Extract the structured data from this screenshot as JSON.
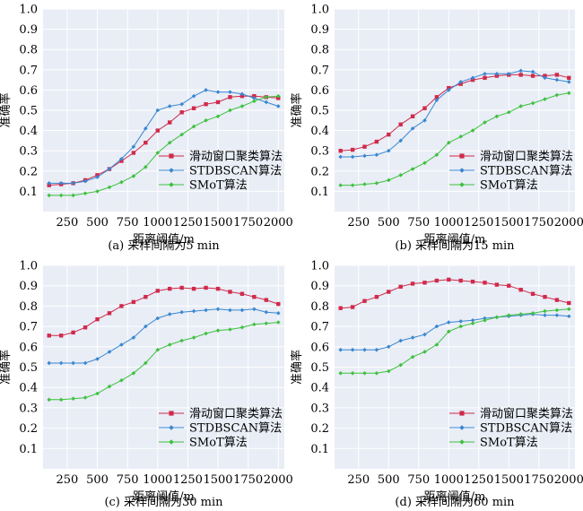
{
  "chart_data": [
    {
      "type": "line",
      "caption": "(a) 采样间隔为5 min",
      "xlabel": "距离阈值/m",
      "ylabel": "准确率",
      "xlim": [
        50,
        2050
      ],
      "ylim": [
        0,
        1.0
      ],
      "xticks": [
        250,
        500,
        750,
        1000,
        1250,
        1500,
        1750,
        2000
      ],
      "yticks": [
        0.1,
        0.2,
        0.3,
        0.4,
        0.5,
        0.6,
        0.7,
        0.8,
        0.9,
        1.0
      ],
      "grid": true,
      "legend_position": "bottom-right",
      "x": [
        100,
        200,
        300,
        400,
        500,
        600,
        700,
        800,
        900,
        1000,
        1100,
        1200,
        1300,
        1400,
        1500,
        1600,
        1700,
        1800,
        1900,
        2000
      ],
      "series": [
        {
          "name": "滑动窗口聚类算法",
          "color": "#d02a4a",
          "marker": "square",
          "values": [
            0.13,
            0.135,
            0.14,
            0.155,
            0.18,
            0.21,
            0.25,
            0.29,
            0.34,
            0.4,
            0.44,
            0.49,
            0.51,
            0.53,
            0.54,
            0.565,
            0.57,
            0.57,
            0.565,
            0.56
          ]
        },
        {
          "name": "STDBSCAN算法",
          "color": "#3a87d0",
          "marker": "diamond",
          "values": [
            0.14,
            0.14,
            0.14,
            0.15,
            0.17,
            0.21,
            0.26,
            0.32,
            0.41,
            0.5,
            0.52,
            0.53,
            0.57,
            0.6,
            0.59,
            0.59,
            0.58,
            0.56,
            0.54,
            0.52
          ]
        },
        {
          "name": "SMoT算法",
          "color": "#3fc13f",
          "marker": "diamond",
          "values": [
            0.08,
            0.08,
            0.08,
            0.09,
            0.1,
            0.12,
            0.145,
            0.175,
            0.22,
            0.29,
            0.34,
            0.38,
            0.42,
            0.45,
            0.47,
            0.5,
            0.52,
            0.545,
            0.565,
            0.57
          ]
        }
      ]
    },
    {
      "type": "line",
      "caption": "(b) 采样间隔为15 min",
      "xlabel": "距离阈值/m",
      "ylabel": "准确率",
      "xlim": [
        50,
        2050
      ],
      "ylim": [
        0,
        1.0
      ],
      "xticks": [
        250,
        500,
        750,
        1000,
        1250,
        1500,
        1750,
        2000
      ],
      "yticks": [
        0.1,
        0.2,
        0.3,
        0.4,
        0.5,
        0.6,
        0.7,
        0.8,
        0.9,
        1.0
      ],
      "grid": true,
      "legend_position": "bottom-right",
      "x": [
        100,
        200,
        300,
        400,
        500,
        600,
        700,
        800,
        900,
        1000,
        1100,
        1200,
        1300,
        1400,
        1500,
        1600,
        1700,
        1800,
        1900,
        2000
      ],
      "series": [
        {
          "name": "滑动窗口聚类算法",
          "color": "#d02a4a",
          "marker": "square",
          "values": [
            0.3,
            0.305,
            0.32,
            0.345,
            0.38,
            0.43,
            0.47,
            0.51,
            0.565,
            0.61,
            0.63,
            0.65,
            0.66,
            0.67,
            0.675,
            0.675,
            0.67,
            0.67,
            0.675,
            0.66
          ]
        },
        {
          "name": "STDBSCAN算法",
          "color": "#3a87d0",
          "marker": "diamond",
          "values": [
            0.27,
            0.27,
            0.275,
            0.28,
            0.3,
            0.35,
            0.41,
            0.45,
            0.55,
            0.6,
            0.64,
            0.66,
            0.68,
            0.68,
            0.68,
            0.695,
            0.69,
            0.66,
            0.65,
            0.64
          ]
        },
        {
          "name": "SMoT算法",
          "color": "#3fc13f",
          "marker": "diamond",
          "values": [
            0.13,
            0.13,
            0.135,
            0.14,
            0.155,
            0.18,
            0.21,
            0.24,
            0.28,
            0.34,
            0.37,
            0.4,
            0.44,
            0.47,
            0.49,
            0.52,
            0.535,
            0.555,
            0.575,
            0.585
          ]
        }
      ]
    },
    {
      "type": "line",
      "caption": "(c) 采样间隔为30 min",
      "xlabel": "距离阈值/m",
      "ylabel": "准确率",
      "xlim": [
        50,
        2050
      ],
      "ylim": [
        0,
        1.0
      ],
      "xticks": [
        250,
        500,
        750,
        1000,
        1250,
        1500,
        1750,
        2000
      ],
      "yticks": [
        0.1,
        0.2,
        0.3,
        0.4,
        0.5,
        0.6,
        0.7,
        0.8,
        0.9,
        1.0
      ],
      "grid": true,
      "legend_position": "bottom-right",
      "x": [
        100,
        200,
        300,
        400,
        500,
        600,
        700,
        800,
        900,
        1000,
        1100,
        1200,
        1300,
        1400,
        1500,
        1600,
        1700,
        1800,
        1900,
        2000
      ],
      "series": [
        {
          "name": "滑动窗口聚类算法",
          "color": "#d02a4a",
          "marker": "square",
          "values": [
            0.655,
            0.655,
            0.67,
            0.695,
            0.735,
            0.765,
            0.8,
            0.82,
            0.845,
            0.875,
            0.885,
            0.89,
            0.885,
            0.89,
            0.885,
            0.87,
            0.86,
            0.845,
            0.83,
            0.81
          ]
        },
        {
          "name": "STDBSCAN算法",
          "color": "#3a87d0",
          "marker": "diamond",
          "values": [
            0.52,
            0.52,
            0.52,
            0.52,
            0.54,
            0.575,
            0.61,
            0.645,
            0.7,
            0.74,
            0.76,
            0.77,
            0.775,
            0.78,
            0.785,
            0.78,
            0.78,
            0.785,
            0.77,
            0.765
          ]
        },
        {
          "name": "SMoT算法",
          "color": "#3fc13f",
          "marker": "diamond",
          "values": [
            0.34,
            0.34,
            0.345,
            0.35,
            0.37,
            0.405,
            0.435,
            0.47,
            0.52,
            0.585,
            0.61,
            0.63,
            0.645,
            0.665,
            0.68,
            0.685,
            0.695,
            0.71,
            0.715,
            0.72
          ]
        }
      ]
    },
    {
      "type": "line",
      "caption": "(d) 采样间隔为60 min",
      "xlabel": "距离阈值/m",
      "ylabel": "准确率",
      "xlim": [
        50,
        2050
      ],
      "ylim": [
        0,
        1.0
      ],
      "xticks": [
        250,
        500,
        750,
        1000,
        1250,
        1500,
        1750,
        2000
      ],
      "yticks": [
        0.1,
        0.2,
        0.3,
        0.4,
        0.5,
        0.6,
        0.7,
        0.8,
        0.9,
        1.0
      ],
      "grid": true,
      "legend_position": "bottom-right",
      "x": [
        100,
        200,
        300,
        400,
        500,
        600,
        700,
        800,
        900,
        1000,
        1100,
        1200,
        1300,
        1400,
        1500,
        1600,
        1700,
        1800,
        1900,
        2000
      ],
      "series": [
        {
          "name": "滑动窗口聚类算法",
          "color": "#d02a4a",
          "marker": "square",
          "values": [
            0.79,
            0.795,
            0.825,
            0.845,
            0.87,
            0.895,
            0.91,
            0.915,
            0.925,
            0.93,
            0.925,
            0.92,
            0.915,
            0.905,
            0.9,
            0.88,
            0.86,
            0.845,
            0.83,
            0.815
          ]
        },
        {
          "name": "STDBSCAN算法",
          "color": "#3a87d0",
          "marker": "diamond",
          "values": [
            0.585,
            0.585,
            0.585,
            0.585,
            0.6,
            0.63,
            0.645,
            0.66,
            0.7,
            0.72,
            0.725,
            0.73,
            0.74,
            0.745,
            0.75,
            0.755,
            0.76,
            0.755,
            0.755,
            0.75
          ]
        },
        {
          "name": "SMoT算法",
          "color": "#3fc13f",
          "marker": "diamond",
          "values": [
            0.47,
            0.47,
            0.47,
            0.47,
            0.48,
            0.51,
            0.55,
            0.575,
            0.61,
            0.675,
            0.7,
            0.715,
            0.73,
            0.745,
            0.755,
            0.76,
            0.765,
            0.775,
            0.78,
            0.785
          ]
        }
      ]
    }
  ]
}
